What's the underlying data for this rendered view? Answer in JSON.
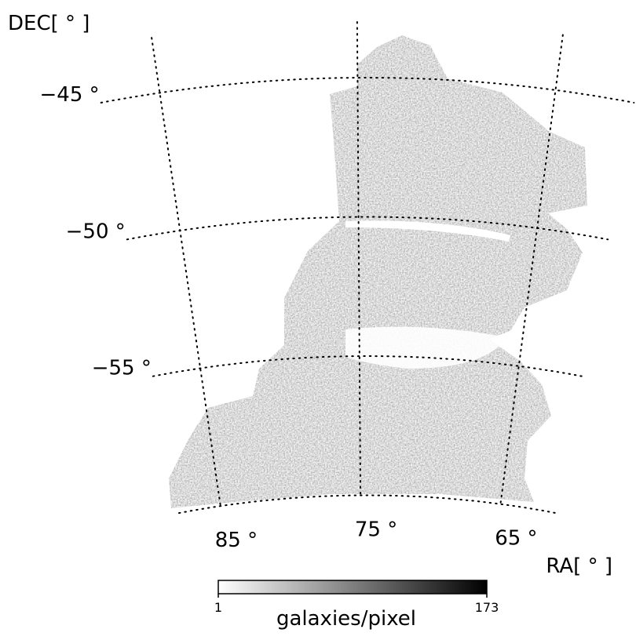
{
  "chart_data": {
    "type": "map",
    "xlabel": "RA[ ° ]",
    "ylabel": "DEC[ ° ]",
    "xlim": [
      88,
      61
    ],
    "ylim": [
      -60,
      -43
    ],
    "xticks": [
      {
        "value": 85,
        "label": "85 °"
      },
      {
        "value": 75,
        "label": "75 °"
      },
      {
        "value": 65,
        "label": "65 °"
      }
    ],
    "yticks": [
      {
        "value": -45,
        "label": "−45 °"
      },
      {
        "value": -50,
        "label": "−50 °"
      },
      {
        "value": -55,
        "label": "−55 °"
      }
    ],
    "grid": true,
    "colorbar": {
      "label": "galaxies/pixel",
      "ticks": [
        1,
        173
      ]
    }
  }
}
